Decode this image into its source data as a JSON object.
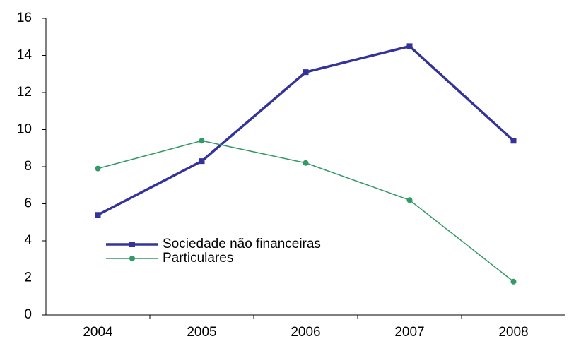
{
  "chart_data": {
    "type": "line",
    "categories": [
      "2004",
      "2005",
      "2006",
      "2007",
      "2008"
    ],
    "series": [
      {
        "name": "Sociedade não financeiras",
        "color": "#333399",
        "marker": "square",
        "values": [
          5.4,
          8.3,
          13.1,
          14.5,
          9.4
        ]
      },
      {
        "name": "Particulares",
        "color": "#339966",
        "marker": "circle",
        "values": [
          7.9,
          9.4,
          8.2,
          6.2,
          1.8
        ]
      }
    ],
    "ylim": [
      0,
      16
    ],
    "yticks": [
      0,
      2,
      4,
      6,
      8,
      10,
      12,
      14,
      16
    ],
    "grid": false,
    "legend": "lower left"
  }
}
